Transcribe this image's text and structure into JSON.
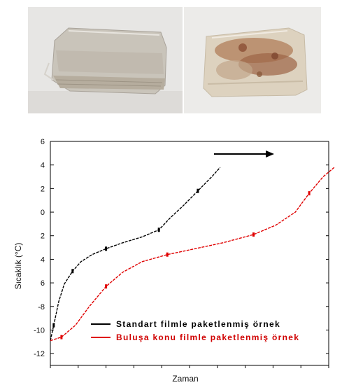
{
  "photos": [
    {
      "name": "standard-film-sample-photo"
    },
    {
      "name": "invention-film-sample-photo"
    }
  ],
  "chart_data": {
    "type": "line",
    "xlabel": "Zaman",
    "ylabel": "Sıcaklık (°C)",
    "ylim": [
      -13,
      6
    ],
    "yticks": [
      6,
      4,
      2,
      0,
      -2,
      -4,
      -6,
      -8,
      -10,
      -12
    ],
    "ytick_labels": [
      "6",
      "4",
      "2",
      "0",
      "2",
      "4",
      "6",
      "-8",
      "-10",
      "-12"
    ],
    "xlim": [
      0,
      10
    ],
    "x_tick_labels": false,
    "grid": false,
    "legend_position": "bottom-center",
    "annotation": "arrow pointing right",
    "series": [
      {
        "name": "Standart filmle paketlenmiş örnek",
        "color": "#000000",
        "x": [
          0.0,
          0.12,
          0.3,
          0.5,
          0.8,
          1.1,
          1.5,
          2.0,
          2.6,
          3.3,
          3.9,
          4.3,
          4.8,
          5.3,
          5.8,
          6.1
        ],
        "y": [
          -10.9,
          -9.6,
          -7.6,
          -6.1,
          -5.0,
          -4.2,
          -3.6,
          -3.1,
          -2.6,
          -2.1,
          -1.5,
          -0.5,
          0.6,
          1.8,
          3.0,
          3.8
        ]
      },
      {
        "name": "Buluşa konu filmle paketlenmiş örnek",
        "color": "#e00000",
        "x": [
          0.0,
          0.4,
          0.9,
          1.4,
          2.0,
          2.6,
          3.3,
          4.2,
          5.2,
          6.2,
          7.3,
          8.1,
          8.8,
          9.3,
          9.8,
          10.2
        ],
        "y": [
          -10.9,
          -10.6,
          -9.6,
          -8.0,
          -6.3,
          -5.1,
          -4.2,
          -3.6,
          -3.1,
          -2.6,
          -1.9,
          -1.1,
          0.0,
          1.6,
          3.0,
          3.8
        ]
      }
    ]
  }
}
